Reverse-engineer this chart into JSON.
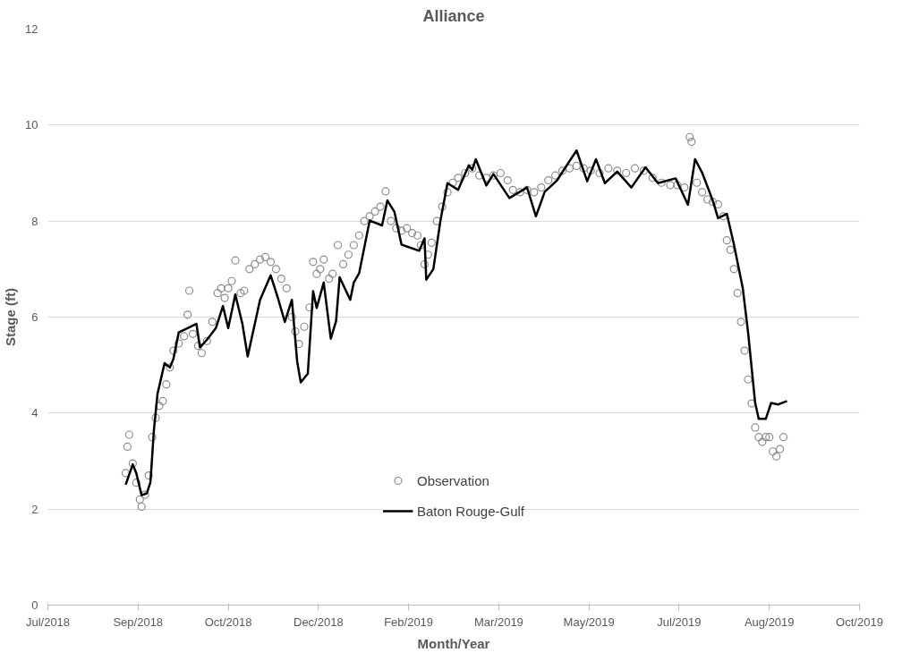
{
  "chart_data": {
    "type": "line",
    "title": "Alliance",
    "xlabel": "Month/Year",
    "ylabel": "Stage (ft)",
    "xlim": [
      "2018-07-14",
      "2019-10-16"
    ],
    "xticks": [
      {
        "value": "2018-07-14",
        "label": "Jul/2018"
      },
      {
        "value": "2018-09-03",
        "label": "Sep/2018"
      },
      {
        "value": "2018-10-24",
        "label": "Oct/2018"
      },
      {
        "value": "2018-12-14",
        "label": "Dec/2018"
      },
      {
        "value": "2019-02-03",
        "label": "Feb/2019"
      },
      {
        "value": "2019-03-26",
        "label": "Mar/2019"
      },
      {
        "value": "2019-05-16",
        "label": "May/2019"
      },
      {
        "value": "2019-07-06",
        "label": "Jul/2019"
      },
      {
        "value": "2019-08-26",
        "label": "Aug/2019"
      },
      {
        "value": "2019-10-16",
        "label": "Oct/2019"
      }
    ],
    "ylim": [
      0,
      12
    ],
    "yticks": [
      0,
      2,
      4,
      6,
      8,
      10,
      12
    ],
    "grid": "y",
    "legend": "bottom",
    "series": [
      {
        "name": "Observation",
        "type": "scatter",
        "marker": "circle",
        "color": "#8c8c8c",
        "x": [
          "2018-08-27",
          "2018-08-28",
          "2018-08-29",
          "2018-08-31",
          "2018-09-02",
          "2018-09-04",
          "2018-09-05",
          "2018-09-07",
          "2018-09-09",
          "2018-09-11",
          "2018-09-13",
          "2018-09-15",
          "2018-09-17",
          "2018-09-19",
          "2018-09-21",
          "2018-09-23",
          "2018-09-26",
          "2018-09-29",
          "2018-10-01",
          "2018-10-02",
          "2018-10-04",
          "2018-10-07",
          "2018-10-09",
          "2018-10-12",
          "2018-10-15",
          "2018-10-18",
          "2018-10-20",
          "2018-10-22",
          "2018-10-24",
          "2018-10-26",
          "2018-10-28",
          "2018-10-31",
          "2018-11-02",
          "2018-11-05",
          "2018-11-08",
          "2018-11-11",
          "2018-11-14",
          "2018-11-17",
          "2018-11-20",
          "2018-11-23",
          "2018-11-26",
          "2018-11-29",
          "2018-12-01",
          "2018-12-03",
          "2018-12-06",
          "2018-12-09",
          "2018-12-11",
          "2018-12-13",
          "2018-12-15",
          "2018-12-17",
          "2018-12-20",
          "2018-12-22",
          "2018-12-25",
          "2018-12-28",
          "2018-12-31",
          "2019-01-03",
          "2019-01-06",
          "2019-01-09",
          "2019-01-12",
          "2019-01-15",
          "2019-01-18",
          "2019-01-21",
          "2019-01-24",
          "2019-01-27",
          "2019-01-30",
          "2019-02-02",
          "2019-02-05",
          "2019-02-08",
          "2019-02-10",
          "2019-02-12",
          "2019-02-14",
          "2019-02-16",
          "2019-02-19",
          "2019-02-22",
          "2019-02-25",
          "2019-02-28",
          "2019-03-03",
          "2019-03-07",
          "2019-03-11",
          "2019-03-15",
          "2019-03-19",
          "2019-03-23",
          "2019-03-27",
          "2019-03-31",
          "2019-04-03",
          "2019-04-07",
          "2019-04-11",
          "2019-04-15",
          "2019-04-19",
          "2019-04-23",
          "2019-04-27",
          "2019-05-01",
          "2019-05-05",
          "2019-05-09",
          "2019-05-13",
          "2019-05-17",
          "2019-05-22",
          "2019-05-27",
          "2019-06-01",
          "2019-06-06",
          "2019-06-11",
          "2019-06-16",
          "2019-06-21",
          "2019-06-26",
          "2019-07-01",
          "2019-07-05",
          "2019-07-09",
          "2019-07-12",
          "2019-07-13",
          "2019-07-16",
          "2019-07-19",
          "2019-07-22",
          "2019-07-25",
          "2019-07-28",
          "2019-07-31",
          "2019-08-02",
          "2019-08-04",
          "2019-08-06",
          "2019-08-08",
          "2019-08-10",
          "2019-08-12",
          "2019-08-14",
          "2019-08-16",
          "2019-08-18",
          "2019-08-20",
          "2019-08-22",
          "2019-08-24",
          "2019-08-26",
          "2019-08-28",
          "2019-08-30",
          "2019-09-01",
          "2019-09-03"
        ],
        "values": [
          2.75,
          3.3,
          3.55,
          2.95,
          2.55,
          2.2,
          2.05,
          2.3,
          2.7,
          3.5,
          3.9,
          4.15,
          4.25,
          4.6,
          4.95,
          5.3,
          5.45,
          5.6,
          6.05,
          6.55,
          5.65,
          5.4,
          5.25,
          5.5,
          5.9,
          6.5,
          6.6,
          6.4,
          6.6,
          6.75,
          7.18,
          6.5,
          6.55,
          7.0,
          7.1,
          7.2,
          7.25,
          7.15,
          7.0,
          6.8,
          6.6,
          6.0,
          5.7,
          5.44,
          5.8,
          6.2,
          7.15,
          6.9,
          7.0,
          7.2,
          6.8,
          6.9,
          7.5,
          7.1,
          7.3,
          7.5,
          7.7,
          8.0,
          8.1,
          8.2,
          8.3,
          8.62,
          8.0,
          7.85,
          7.8,
          7.85,
          7.75,
          7.7,
          7.5,
          7.1,
          7.3,
          7.55,
          8.0,
          8.3,
          8.6,
          8.8,
          8.9,
          9.0,
          9.1,
          8.95,
          8.9,
          8.95,
          9.0,
          8.85,
          8.65,
          8.6,
          8.65,
          8.6,
          8.7,
          8.85,
          8.95,
          9.05,
          9.1,
          9.15,
          9.1,
          9.05,
          9.0,
          9.1,
          9.05,
          9.0,
          9.1,
          9.05,
          8.9,
          8.8,
          8.75,
          8.75,
          8.7,
          9.75,
          9.65,
          8.8,
          8.6,
          8.45,
          8.4,
          8.35,
          8.1,
          7.6,
          7.4,
          7.0,
          6.5,
          5.9,
          5.3,
          4.7,
          4.2,
          3.7,
          3.5,
          3.4,
          3.5,
          3.5,
          3.2,
          3.1,
          3.25,
          3.5
        ]
      },
      {
        "name": "Baton Rouge-Gulf",
        "color": "#000000",
        "x": [
          "2018-08-27",
          "2018-08-31",
          "2018-09-02",
          "2018-09-05",
          "2018-09-08",
          "2018-09-10",
          "2018-09-12",
          "2018-09-14",
          "2018-09-18",
          "2018-09-21",
          "2018-09-23",
          "2018-09-26",
          "2018-10-01",
          "2018-10-06",
          "2018-10-08",
          "2018-10-12",
          "2018-10-17",
          "2018-10-21",
          "2018-10-24",
          "2018-10-28",
          "2018-11-01",
          "2018-11-04",
          "2018-11-11",
          "2018-11-17",
          "2018-11-21",
          "2018-11-25",
          "2018-11-29",
          "2018-12-02",
          "2018-12-04",
          "2018-12-08",
          "2018-12-11",
          "2018-12-13",
          "2018-12-17",
          "2018-12-21",
          "2018-12-24",
          "2018-12-26",
          "2019-01-01",
          "2019-01-03",
          "2019-01-06",
          "2019-01-12",
          "2019-01-19",
          "2019-01-22",
          "2019-01-26",
          "2019-01-30",
          "2019-02-09",
          "2019-02-12",
          "2019-02-13",
          "2019-02-17",
          "2019-02-21",
          "2019-02-25",
          "2019-03-03",
          "2019-03-09",
          "2019-03-11",
          "2019-03-13",
          "2019-03-19",
          "2019-03-23",
          "2019-04-01",
          "2019-04-11",
          "2019-04-16",
          "2019-04-21",
          "2019-04-28",
          "2019-05-05",
          "2019-05-09",
          "2019-05-15",
          "2019-05-20",
          "2019-05-25",
          "2019-06-01",
          "2019-06-09",
          "2019-06-17",
          "2019-06-24",
          "2019-07-04",
          "2019-07-11",
          "2019-07-15",
          "2019-07-19",
          "2019-07-25",
          "2019-07-28",
          "2019-08-02",
          "2019-08-06",
          "2019-08-11",
          "2019-08-14",
          "2019-08-18",
          "2019-08-20",
          "2019-08-24",
          "2019-08-27",
          "2019-08-31",
          "2019-09-05"
        ],
        "values": [
          2.51,
          2.93,
          2.75,
          2.29,
          2.33,
          2.56,
          3.66,
          4.4,
          5.04,
          4.95,
          5.13,
          5.68,
          5.77,
          5.86,
          5.37,
          5.53,
          5.77,
          6.23,
          5.77,
          6.47,
          5.86,
          5.18,
          6.36,
          6.87,
          6.41,
          5.9,
          6.36,
          5.07,
          4.64,
          4.82,
          6.54,
          6.19,
          6.72,
          5.55,
          5.92,
          6.83,
          6.36,
          6.72,
          6.91,
          8.01,
          7.91,
          8.43,
          8.19,
          7.51,
          7.38,
          7.64,
          6.78,
          7.0,
          8.01,
          8.79,
          8.65,
          9.16,
          9.07,
          9.29,
          8.74,
          8.98,
          8.48,
          8.7,
          8.1,
          8.61,
          8.85,
          9.25,
          9.47,
          8.83,
          9.29,
          8.79,
          9.03,
          8.7,
          9.12,
          8.79,
          8.89,
          8.34,
          9.29,
          9.01,
          8.43,
          8.06,
          8.15,
          7.51,
          6.6,
          5.68,
          4.21,
          3.88,
          3.88,
          4.21,
          4.18,
          4.25
        ]
      }
    ]
  }
}
